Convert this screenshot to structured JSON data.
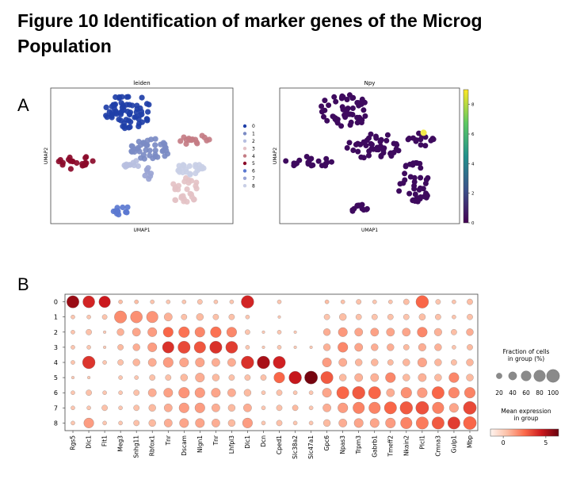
{
  "figure": {
    "title_line1": "Figure 10 Identification of marker genes of the Microg",
    "title_line2": "Population",
    "panel_a_label": "A",
    "panel_b_label": "B"
  },
  "chart_data": [
    {
      "type": "scatter",
      "title": "leiden",
      "xlabel": "UMAP1",
      "ylabel": "UMAP2",
      "legend_position": "right",
      "legend": [
        "0",
        "1",
        "2",
        "3",
        "4",
        "5",
        "6",
        "7",
        "8"
      ],
      "cluster_colors": [
        "#1f3fa8",
        "#7b8bc4",
        "#b7bfe0",
        "#e4c2c6",
        "#c47c84",
        "#8b0a2a",
        "#5b78d0",
        "#9aa4d4",
        "#c9cfe6"
      ]
    },
    {
      "type": "scatter",
      "title": "Npy",
      "xlabel": "UMAP1",
      "ylabel": "UMAP2",
      "colorbar_ticks": [
        "0",
        "2",
        "4",
        "6",
        "8"
      ],
      "colorbar_range": [
        0,
        9
      ],
      "point_color": "#3e0a5e",
      "highlight_color": "#f2e84a"
    },
    {
      "type": "dotplot",
      "groups": [
        "0",
        "1",
        "2",
        "3",
        "4",
        "5",
        "6",
        "7",
        "8"
      ],
      "genes": [
        "Rgs5",
        "Dlc1",
        "Flt1",
        "Meg3",
        "Snhg11",
        "Rbfox1",
        "Tnr",
        "Dscam",
        "Nlgn1",
        "Tnr",
        "Lhfpl3",
        "Dlc1",
        "Dcn",
        "Cped1",
        "Slc38a2",
        "Slc47a1",
        "Gpc6",
        "Npas3",
        "Trpm3",
        "Gabrb1",
        "Tmeff2",
        "Nkain2",
        "Plcl1",
        "Cmna3",
        "Gulp1",
        "Mbp"
      ],
      "fraction_legend_title": "Fraction of cells\nin group (%)",
      "fraction_legend_values": [
        20,
        40,
        60,
        80,
        100
      ],
      "fraction_legend_labels": [
        "20",
        "40",
        "60",
        "80",
        "100"
      ],
      "color_legend_title": "Mean expression\nin group",
      "color_legend_range": [
        -1.5,
        6.5
      ],
      "color_legend_ticks": [
        0,
        5
      ],
      "color_legend_tick_labels": [
        "0",
        "5"
      ],
      "fraction_pct": [
        [
          90,
          85,
          80,
          10,
          10,
          10,
          10,
          10,
          15,
          10,
          10,
          95,
          0,
          10,
          0,
          0,
          10,
          10,
          15,
          10,
          10,
          20,
          95,
          15,
          10,
          20
        ],
        [
          10,
          10,
          15,
          90,
          85,
          80,
          40,
          20,
          30,
          20,
          20,
          10,
          0,
          5,
          0,
          0,
          20,
          30,
          20,
          20,
          20,
          20,
          25,
          20,
          10,
          20
        ],
        [
          10,
          20,
          5,
          30,
          40,
          50,
          60,
          70,
          60,
          70,
          60,
          15,
          5,
          10,
          5,
          0,
          30,
          50,
          40,
          40,
          40,
          40,
          60,
          35,
          20,
          30
        ],
        [
          10,
          10,
          5,
          20,
          30,
          50,
          80,
          90,
          80,
          90,
          85,
          10,
          5,
          10,
          5,
          5,
          30,
          60,
          40,
          30,
          30,
          20,
          35,
          30,
          10,
          20
        ],
        [
          10,
          95,
          10,
          20,
          30,
          40,
          60,
          50,
          50,
          40,
          40,
          95,
          95,
          90,
          0,
          0,
          50,
          40,
          30,
          30,
          20,
          30,
          50,
          30,
          20,
          30
        ],
        [
          5,
          5,
          0,
          10,
          10,
          20,
          20,
          30,
          50,
          30,
          20,
          20,
          20,
          70,
          95,
          100,
          90,
          30,
          40,
          40,
          60,
          30,
          40,
          30,
          60,
          30
        ],
        [
          10,
          20,
          10,
          10,
          20,
          40,
          50,
          70,
          60,
          50,
          40,
          30,
          10,
          20,
          10,
          10,
          50,
          90,
          95,
          90,
          40,
          70,
          60,
          90,
          70,
          70
        ],
        [
          10,
          10,
          20,
          10,
          20,
          30,
          40,
          60,
          60,
          40,
          30,
          40,
          10,
          20,
          20,
          10,
          40,
          60,
          80,
          80,
          90,
          95,
          100,
          80,
          50,
          100
        ],
        [
          10,
          60,
          10,
          10,
          20,
          30,
          40,
          50,
          50,
          40,
          30,
          60,
          10,
          20,
          10,
          10,
          30,
          40,
          50,
          50,
          60,
          80,
          90,
          90,
          90,
          100
        ]
      ],
      "mean_expression": [
        [
          5.5,
          4.2,
          4.5,
          0.5,
          0.5,
          0.3,
          0.2,
          0.2,
          0.3,
          0.2,
          0.2,
          4.2,
          0,
          0.2,
          0,
          0,
          0.5,
          0.4,
          0.4,
          0.2,
          0.3,
          0.5,
          2.6,
          0.3,
          0.3,
          0.5
        ],
        [
          0.2,
          0.2,
          0.3,
          1.7,
          1.6,
          1.5,
          0.8,
          0.4,
          0.6,
          0.4,
          0.4,
          0.2,
          0,
          0.1,
          0,
          0,
          0.3,
          0.5,
          0.4,
          0.3,
          0.4,
          0.3,
          0.5,
          0.4,
          0.3,
          0.4
        ],
        [
          0.3,
          0.4,
          0.1,
          0.8,
          1.1,
          1.3,
          2.6,
          2.3,
          1.8,
          2.3,
          1.8,
          0.3,
          0.1,
          0.2,
          0.1,
          0,
          0.9,
          1.4,
          1.1,
          1.2,
          1.1,
          1.1,
          1.8,
          0.8,
          0.5,
          0.9
        ],
        [
          0.2,
          0.2,
          0.1,
          0.6,
          0.9,
          1.3,
          3.9,
          3.3,
          3.0,
          3.9,
          3.6,
          0.2,
          0.1,
          0.2,
          0.1,
          0.1,
          0.8,
          1.8,
          1.1,
          0.9,
          0.9,
          0.6,
          0.9,
          0.8,
          0.3,
          0.6
        ],
        [
          0.3,
          3.8,
          0.2,
          0.4,
          0.7,
          0.9,
          1.3,
          1.1,
          1.1,
          0.9,
          0.9,
          3.9,
          5.2,
          4.3,
          0,
          0,
          1.3,
          0.9,
          0.7,
          0.7,
          0.6,
          0.7,
          1.1,
          0.7,
          0.5,
          0.7
        ],
        [
          0.1,
          0.1,
          0,
          0.2,
          0.2,
          0.4,
          0.4,
          0.6,
          0.9,
          0.6,
          0.4,
          0.4,
          0.4,
          2.6,
          4.6,
          6.2,
          2.9,
          0.6,
          0.8,
          0.8,
          1.8,
          0.6,
          0.8,
          0.6,
          1.8,
          0.6
        ],
        [
          0.2,
          0.4,
          0.2,
          0.2,
          0.4,
          0.9,
          1.2,
          1.5,
          1.3,
          1.1,
          0.9,
          0.6,
          0.2,
          0.4,
          0.2,
          0.2,
          1.1,
          2.6,
          2.9,
          2.6,
          0.9,
          1.6,
          1.3,
          2.6,
          1.8,
          1.9
        ],
        [
          0.2,
          0.2,
          0.4,
          0.2,
          0.4,
          0.6,
          0.9,
          1.3,
          1.3,
          0.9,
          0.6,
          0.9,
          0.2,
          0.4,
          0.6,
          0.2,
          0.9,
          1.3,
          1.9,
          1.9,
          2.6,
          2.9,
          3.1,
          1.9,
          1.1,
          3.3
        ],
        [
          0.2,
          1.3,
          0.2,
          0.2,
          0.4,
          0.6,
          0.9,
          1.1,
          1.1,
          0.9,
          0.6,
          1.3,
          0.2,
          0.4,
          0.2,
          0.2,
          0.6,
          0.9,
          1.1,
          1.1,
          1.3,
          1.9,
          2.1,
          2.9,
          3.6,
          2.6
        ]
      ]
    }
  ]
}
